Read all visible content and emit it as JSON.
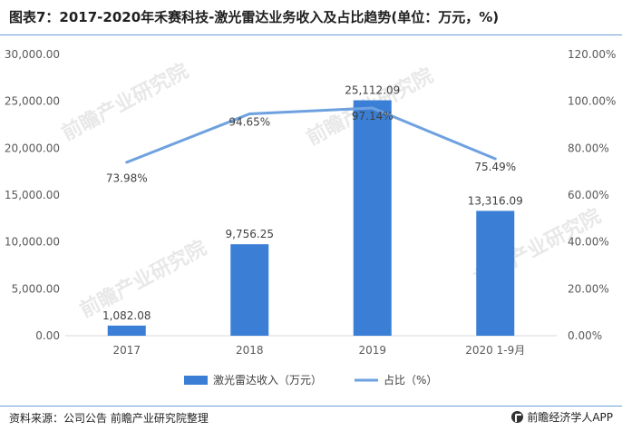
{
  "title": "图表7：2017-2020年禾赛科技-激光雷达业务收入及占比趋势(单位：万元，%)",
  "source": "资料来源：公司公告 前瞻产业研究院整理",
  "brand": "前瞻经济学人APP",
  "watermark": "前瞻产业研究院",
  "chart_data": {
    "type": "bar",
    "categories": [
      "2017",
      "2018",
      "2019",
      "2020 1-9月"
    ],
    "series": [
      {
        "name": "激光雷达收入（万元）",
        "type": "bar",
        "axis": "left",
        "values": [
          1082.08,
          9756.25,
          25112.09,
          13316.09
        ],
        "labels": [
          "1,082.08",
          "9,756.25",
          "25,112.09",
          "13,316.09"
        ],
        "color": "#3a7fd5"
      },
      {
        "name": "占比（%）",
        "type": "line",
        "axis": "right",
        "values": [
          73.98,
          94.65,
          97.14,
          75.49
        ],
        "labels": [
          "73.98%",
          "94.65%",
          "97.14%",
          "75.49%"
        ],
        "color": "#6ea1e0"
      }
    ],
    "y_left": {
      "min": 0,
      "max": 30000,
      "step": 5000,
      "ticks": [
        "0.00",
        "5,000.00",
        "10,000.00",
        "15,000.00",
        "20,000.00",
        "25,000.00",
        "30,000.00"
      ]
    },
    "y_right": {
      "min": 0,
      "max": 120,
      "step": 20,
      "ticks": [
        "0.00%",
        "20.00%",
        "40.00%",
        "60.00%",
        "80.00%",
        "100.00%",
        "120.00%"
      ]
    },
    "legend_position": "bottom",
    "grid": false
  }
}
